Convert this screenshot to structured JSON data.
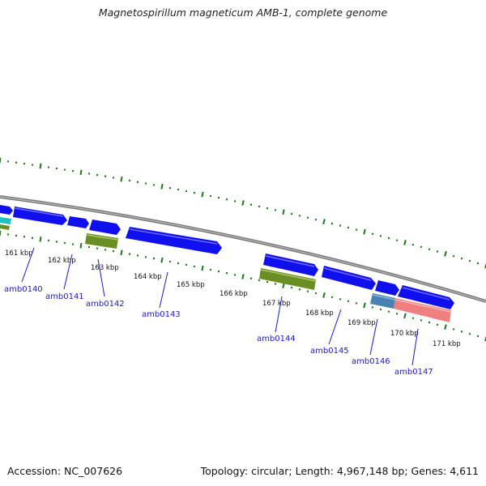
{
  "title": "Magnetospirillum magneticum AMB-1, complete genome",
  "footer": {
    "accession": "Accession: NC_007626",
    "summary": "Topology: circular; Length: 4,967,148 bp; Genes: 4,611"
  },
  "colors": {
    "backbone": "#888888",
    "tick": "#1a7a1a",
    "cds": "#1010ee",
    "cds_highlight": "#5a5aff",
    "gene_green": "#6b8e23",
    "gene_cyan": "#20c0c0",
    "gene_steelblue": "#4682b4",
    "gene_salmon": "#f08080",
    "label": "#1a1acc"
  },
  "scale_labels": [
    "161 kbp",
    "162 kbp",
    "163 kbp",
    "164 kbp",
    "165 kbp",
    "166 kbp",
    "167 kbp",
    "168 kbp",
    "169 kbp",
    "170 kbp",
    "171 kbp"
  ],
  "gene_labels": [
    "amb0140",
    "amb0141",
    "amb0142",
    "amb0143",
    "amb0144",
    "amb0145",
    "amb0146",
    "amb0147"
  ]
}
